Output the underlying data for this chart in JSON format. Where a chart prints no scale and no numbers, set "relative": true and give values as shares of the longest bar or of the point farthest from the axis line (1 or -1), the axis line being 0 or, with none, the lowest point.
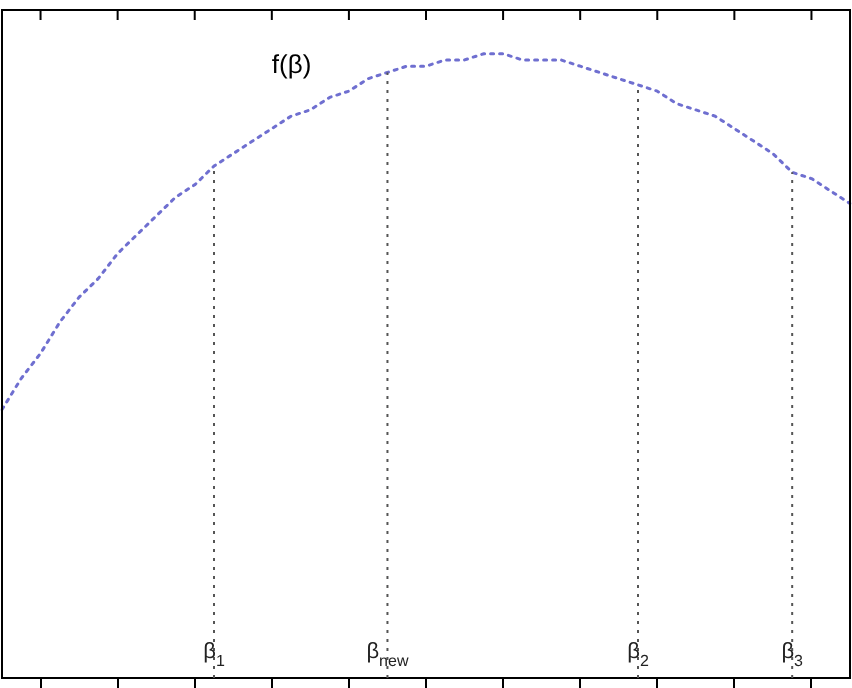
{
  "chart_data": {
    "type": "line",
    "relative": true,
    "categories": [
      null,
      null,
      null,
      null,
      null,
      null,
      null,
      null,
      null,
      null,
      null,
      "β$_{1}$",
      null,
      null,
      null,
      null,
      null,
      null,
      null,
      null,
      "β$_{new}$",
      null,
      null,
      null,
      null,
      null,
      null,
      null,
      null,
      null,
      null,
      null,
      null,
      "β$_{2}$",
      null,
      null,
      null,
      null,
      null,
      null,
      null,
      "β$_{3}$",
      null,
      null,
      null
    ],
    "series": [
      {
        "name": "f(β)",
        "color": "#6f6fd0",
        "values": [
          0.43,
          0.48,
          0.52,
          0.57,
          0.61,
          0.64,
          0.68,
          0.71,
          0.74,
          0.77,
          0.79,
          0.82,
          0.84,
          0.86,
          0.88,
          0.9,
          0.91,
          0.93,
          0.94,
          0.96,
          0.97,
          0.98,
          0.98,
          0.99,
          0.99,
          1.0,
          1.0,
          0.99,
          0.99,
          0.99,
          0.98,
          0.97,
          0.96,
          0.95,
          0.94,
          0.92,
          0.91,
          0.9,
          0.88,
          0.86,
          0.84,
          0.81,
          0.8,
          0.78,
          0.76
        ]
      }
    ],
    "ref_lines": [
      {
        "axis": "x",
        "value": "β$_{1}$",
        "color": "#555555",
        "line_style": "dotted"
      },
      {
        "axis": "x",
        "value": "β$_{new}$",
        "color": "#555555",
        "line_style": "dotted"
      },
      {
        "axis": "x",
        "value": "β$_{2}$",
        "color": "#555555",
        "line_style": "dotted"
      },
      {
        "axis": "x",
        "value": "β$_{3}$",
        "color": "#555555",
        "line_style": "dotted"
      }
    ],
    "line_style": "dotted",
    "marker": "none",
    "grid": false,
    "legend": false,
    "tick_labels": "x"
  }
}
